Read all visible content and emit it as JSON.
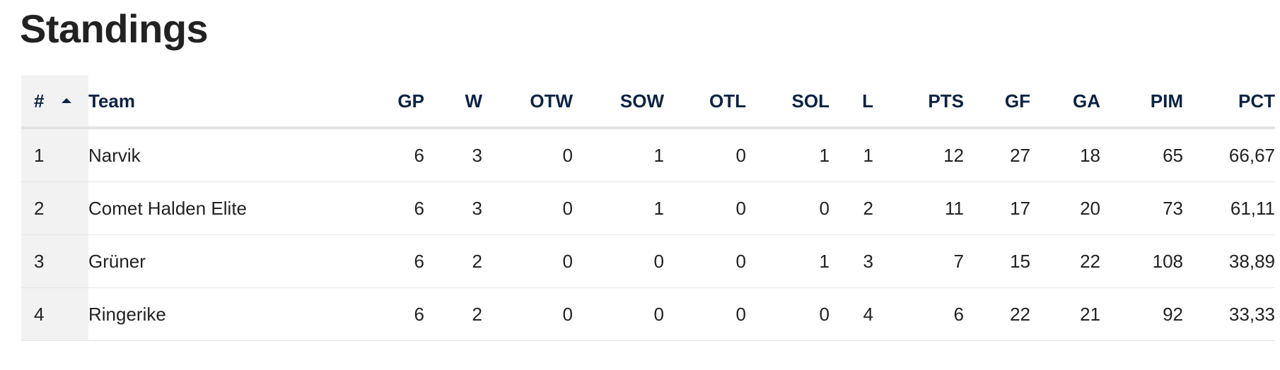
{
  "page": {
    "title": "Standings"
  },
  "table": {
    "columns": {
      "rank": "#",
      "team": "Team",
      "gp": "GP",
      "w": "W",
      "otw": "OTW",
      "sow": "SOW",
      "otl": "OTL",
      "sol": "SOL",
      "l": "L",
      "pts": "PTS",
      "gf": "GF",
      "ga": "GA",
      "pim": "PIM",
      "pct": "PCT"
    },
    "sort_icon": "caret-up-icon",
    "rows": [
      {
        "rank": "1",
        "team": "Narvik",
        "gp": "6",
        "w": "3",
        "otw": "0",
        "sow": "1",
        "otl": "0",
        "sol": "1",
        "l": "1",
        "pts": "12",
        "gf": "27",
        "ga": "18",
        "pim": "65",
        "pct": "66,67"
      },
      {
        "rank": "2",
        "team": "Comet Halden Elite",
        "gp": "6",
        "w": "3",
        "otw": "0",
        "sow": "1",
        "otl": "0",
        "sol": "0",
        "l": "2",
        "pts": "11",
        "gf": "17",
        "ga": "20",
        "pim": "73",
        "pct": "61,11"
      },
      {
        "rank": "3",
        "team": "Grüner",
        "gp": "6",
        "w": "2",
        "otw": "0",
        "sow": "0",
        "otl": "0",
        "sol": "1",
        "l": "3",
        "pts": "7",
        "gf": "15",
        "ga": "22",
        "pim": "108",
        "pct": "38,89"
      },
      {
        "rank": "4",
        "team": "Ringerike",
        "gp": "6",
        "w": "2",
        "otw": "0",
        "sow": "0",
        "otl": "0",
        "sol": "0",
        "l": "4",
        "pts": "6",
        "gf": "22",
        "ga": "21",
        "pim": "92",
        "pct": "33,33"
      }
    ]
  },
  "colors": {
    "header_text": "#0c2344",
    "body_text": "#222222",
    "rank_column_bg": "#f2f2f2",
    "row_divider": "#e6e6e6"
  }
}
